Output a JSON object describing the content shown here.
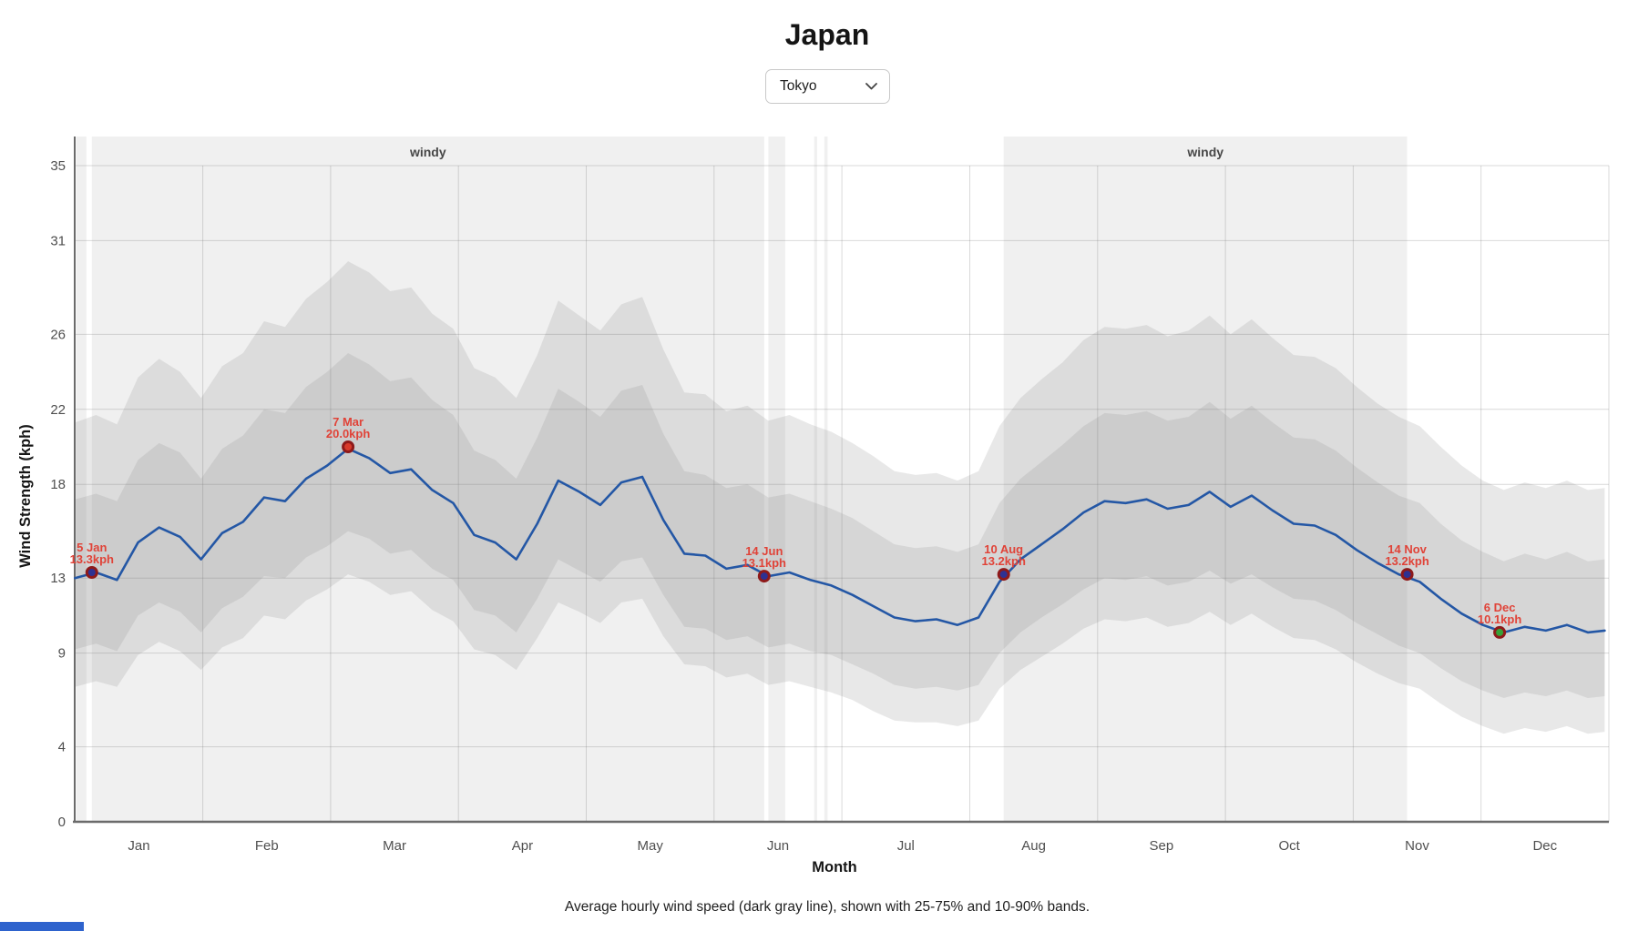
{
  "header": {
    "title": "Japan"
  },
  "controls": {
    "city_select": {
      "value": "Tokyo"
    }
  },
  "colors": {
    "line": "#2457a5",
    "windy_band": "#f0f0f0",
    "band_outer": "rgba(150,150,150,0.22)",
    "band_inner": "rgba(150,150,150,0.22)",
    "gridline": "rgba(120,120,120,0.28)",
    "axis": "#6b6b6b",
    "marker_ring": "#8e1a1a",
    "annotation_text": "#e04338",
    "scrollbar_thumb": "#2e63cd"
  },
  "chart_data": {
    "type": "line",
    "title": "Japan",
    "subtitle": "Tokyo",
    "xlabel": "Month",
    "ylabel": "Wind Strength (kph)",
    "y_unit": "kph",
    "ylim": [
      0,
      35
    ],
    "yticks": [
      0,
      4,
      9,
      13,
      18,
      22,
      26,
      31,
      35
    ],
    "month_labels": [
      "Jan",
      "Feb",
      "Mar",
      "Apr",
      "May",
      "Jun",
      "Jul",
      "Aug",
      "Sep",
      "Oct",
      "Nov",
      "Dec"
    ],
    "days_per_year": 365,
    "grid": true,
    "x_days": [
      0,
      5,
      10,
      15,
      20,
      25,
      30,
      35,
      40,
      45,
      50,
      55,
      60,
      65,
      70,
      75,
      80,
      85,
      90,
      95,
      100,
      105,
      110,
      115,
      120,
      125,
      130,
      135,
      140,
      145,
      150,
      155,
      160,
      165,
      170,
      175,
      180,
      185,
      190,
      195,
      200,
      205,
      210,
      215,
      220,
      225,
      230,
      235,
      240,
      245,
      250,
      255,
      260,
      265,
      270,
      275,
      280,
      285,
      290,
      295,
      300,
      305,
      310,
      315,
      320,
      325,
      330,
      335,
      340,
      345,
      350,
      355,
      360,
      364
    ],
    "series": [
      {
        "name": "mean",
        "values": [
          13.0,
          13.3,
          12.9,
          14.9,
          15.7,
          15.2,
          14.0,
          15.4,
          16.0,
          17.3,
          17.1,
          18.3,
          19.0,
          19.9,
          19.4,
          18.6,
          18.8,
          17.7,
          17.0,
          15.3,
          14.9,
          14.0,
          15.9,
          18.2,
          17.6,
          16.9,
          18.1,
          18.4,
          16.1,
          14.3,
          14.2,
          13.5,
          13.7,
          13.1,
          13.3,
          12.9,
          12.6,
          12.1,
          11.5,
          10.9,
          10.7,
          10.8,
          10.5,
          10.9,
          12.8,
          14.0,
          14.8,
          15.6,
          16.5,
          17.1,
          17.0,
          17.2,
          16.7,
          16.9,
          17.6,
          16.8,
          17.4,
          16.6,
          15.9,
          15.8,
          15.3,
          14.5,
          13.8,
          13.2,
          12.8,
          11.9,
          11.1,
          10.5,
          10.1,
          10.4,
          10.2,
          10.5,
          10.1,
          10.2
        ]
      },
      {
        "name": "p75",
        "values": [
          17.2,
          17.5,
          17.1,
          19.3,
          20.2,
          19.7,
          18.3,
          19.9,
          20.6,
          22.0,
          21.8,
          23.2,
          24.0,
          25.0,
          24.4,
          23.5,
          23.7,
          22.5,
          21.7,
          19.8,
          19.3,
          18.3,
          20.5,
          23.1,
          22.4,
          21.6,
          23.0,
          23.3,
          20.7,
          18.7,
          18.5,
          17.8,
          18.0,
          17.3,
          17.5,
          17.1,
          16.7,
          16.2,
          15.5,
          14.8,
          14.6,
          14.7,
          14.4,
          14.8,
          17.0,
          18.3,
          19.2,
          20.1,
          21.1,
          21.8,
          21.7,
          21.9,
          21.4,
          21.6,
          22.4,
          21.5,
          22.2,
          21.3,
          20.5,
          20.4,
          19.8,
          18.9,
          18.1,
          17.4,
          17.0,
          15.9,
          15.0,
          14.4,
          13.9,
          14.3,
          14.0,
          14.4,
          13.9,
          14.0
        ]
      },
      {
        "name": "p25",
        "values": [
          9.2,
          9.5,
          9.1,
          11.0,
          11.7,
          11.2,
          10.1,
          11.4,
          12.0,
          13.1,
          13.0,
          14.1,
          14.7,
          15.5,
          15.1,
          14.3,
          14.5,
          13.5,
          12.9,
          11.3,
          11.0,
          10.1,
          11.9,
          14.0,
          13.4,
          12.8,
          13.9,
          14.1,
          12.1,
          10.4,
          10.3,
          9.7,
          9.9,
          9.3,
          9.5,
          9.1,
          8.9,
          8.4,
          7.9,
          7.3,
          7.1,
          7.2,
          7.0,
          7.3,
          9.0,
          10.1,
          10.9,
          11.6,
          12.4,
          13.0,
          12.9,
          13.1,
          12.6,
          12.8,
          13.4,
          12.7,
          13.2,
          12.5,
          11.9,
          11.8,
          11.3,
          10.6,
          10.0,
          9.4,
          9.0,
          8.2,
          7.5,
          7.0,
          6.6,
          6.9,
          6.7,
          7.0,
          6.6,
          6.7
        ]
      },
      {
        "name": "p90",
        "values": [
          21.3,
          21.7,
          21.2,
          23.7,
          24.7,
          24.0,
          22.6,
          24.3,
          25.0,
          26.7,
          26.4,
          27.9,
          28.8,
          29.9,
          29.3,
          28.3,
          28.5,
          27.1,
          26.3,
          24.2,
          23.7,
          22.6,
          24.9,
          27.8,
          27.0,
          26.2,
          27.6,
          28.0,
          25.2,
          22.9,
          22.8,
          21.9,
          22.2,
          21.4,
          21.7,
          21.2,
          20.8,
          20.2,
          19.5,
          18.7,
          18.5,
          18.6,
          18.2,
          18.7,
          21.1,
          22.6,
          23.6,
          24.5,
          25.7,
          26.4,
          26.3,
          26.5,
          25.9,
          26.2,
          27.0,
          26.0,
          26.8,
          25.8,
          24.9,
          24.8,
          24.2,
          23.2,
          22.3,
          21.6,
          21.1,
          20.0,
          19.0,
          18.2,
          17.7,
          18.1,
          17.8,
          18.2,
          17.7,
          17.8
        ]
      },
      {
        "name": "p10",
        "values": [
          7.2,
          7.5,
          7.2,
          8.9,
          9.6,
          9.1,
          8.1,
          9.3,
          9.8,
          11.0,
          10.8,
          11.8,
          12.4,
          13.2,
          12.8,
          12.1,
          12.3,
          11.3,
          10.7,
          9.2,
          8.9,
          8.1,
          9.8,
          11.7,
          11.2,
          10.6,
          11.7,
          11.9,
          9.9,
          8.4,
          8.3,
          7.7,
          7.9,
          7.3,
          7.5,
          7.2,
          6.9,
          6.5,
          5.9,
          5.4,
          5.3,
          5.3,
          5.1,
          5.4,
          7.1,
          8.1,
          8.8,
          9.5,
          10.3,
          10.8,
          10.7,
          10.9,
          10.4,
          10.6,
          11.2,
          10.5,
          11.1,
          10.4,
          9.8,
          9.7,
          9.2,
          8.5,
          7.9,
          7.4,
          7.1,
          6.3,
          5.6,
          5.1,
          4.7,
          5.0,
          4.8,
          5.1,
          4.7,
          4.8
        ]
      }
    ],
    "windy_bands": [
      {
        "label": "windy",
        "start_day": 4,
        "end_day": 164
      },
      {
        "label": "windy",
        "start_day": 221,
        "end_day": 317
      },
      {
        "label": "",
        "start_day": 0.3,
        "end_day": 2.7
      },
      {
        "label": "",
        "start_day": 165,
        "end_day": 169
      },
      {
        "label": "",
        "start_day": 175.9,
        "end_day": 176.6
      },
      {
        "label": "",
        "start_day": 178.3,
        "end_day": 179.1
      }
    ],
    "annotations": [
      {
        "date_label": "5 Jan",
        "value_label": "13.3kph",
        "day": 4,
        "value": 13.3,
        "dot_color": "#2e3192"
      },
      {
        "date_label": "7 Mar",
        "value_label": "20.0kph",
        "day": 65,
        "value": 20.0,
        "dot_color": "#d93a2b"
      },
      {
        "date_label": "14 Jun",
        "value_label": "13.1kph",
        "day": 164,
        "value": 13.1,
        "dot_color": "#2e3192"
      },
      {
        "date_label": "10 Aug",
        "value_label": "13.2kph",
        "day": 221,
        "value": 13.2,
        "dot_color": "#2e3192"
      },
      {
        "date_label": "14 Nov",
        "value_label": "13.2kph",
        "day": 317,
        "value": 13.2,
        "dot_color": "#2e3192"
      },
      {
        "date_label": "6 Dec",
        "value_label": "10.1kph",
        "day": 339,
        "value": 10.1,
        "dot_color": "#37a137"
      }
    ],
    "caption": "Average hourly wind speed (dark gray line), shown with 25-75% and 10-90% bands."
  }
}
